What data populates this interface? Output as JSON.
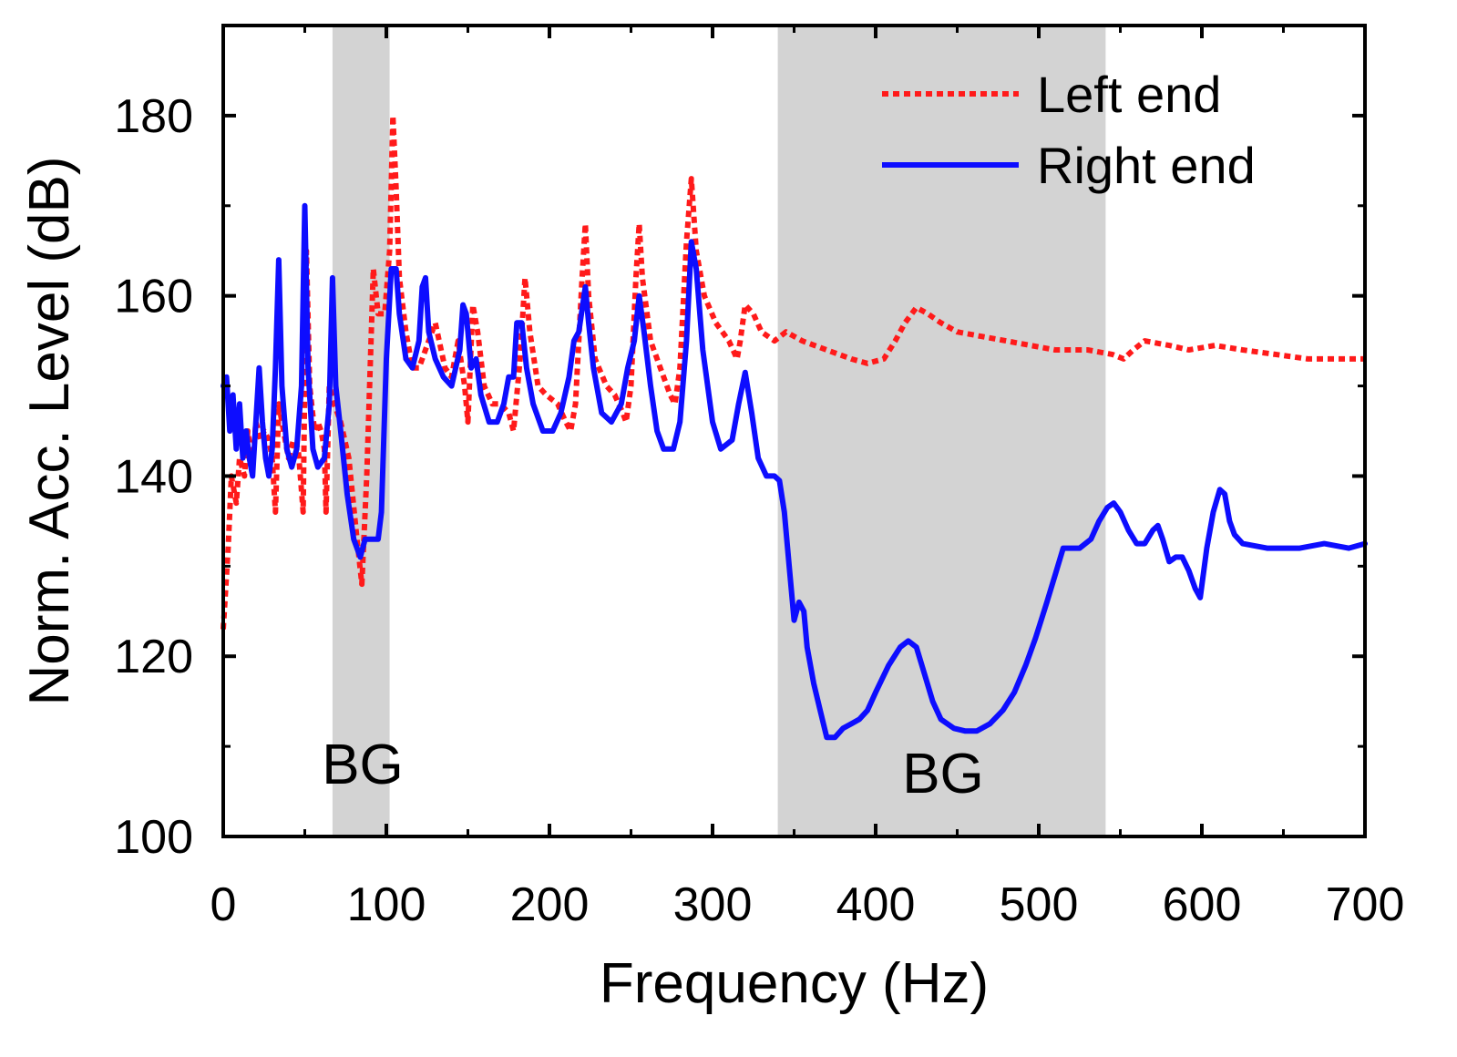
{
  "chart_data": {
    "type": "line",
    "title": "",
    "xlabel": "Frequency (Hz)",
    "ylabel": "Norm. Acc. Level (dB)",
    "xlim": [
      0,
      700
    ],
    "ylim": [
      100,
      190
    ],
    "x_ticks": [
      0,
      100,
      200,
      300,
      400,
      500,
      600,
      700
    ],
    "x_tick_labels": [
      "0",
      "100",
      "200",
      "300",
      "400",
      "500",
      "600",
      "700"
    ],
    "y_ticks": [
      100,
      120,
      140,
      160,
      180
    ],
    "y_tick_labels": [
      "100",
      "120",
      "140",
      "160",
      "180"
    ],
    "grid": false,
    "legend_position": "top-right",
    "bands": [
      {
        "label": "BG",
        "x_start": 67,
        "x_end": 102,
        "color": "#d3d3d3"
      },
      {
        "label": "BG",
        "x_start": 340,
        "x_end": 541,
        "color": "#d3d3d3"
      }
    ],
    "series": [
      {
        "name": "Left end",
        "color": "#ff1a1a",
        "style": "dotted",
        "points": [
          [
            0,
            123
          ],
          [
            3,
            132
          ],
          [
            5,
            140
          ],
          [
            8,
            137
          ],
          [
            10,
            142
          ],
          [
            13,
            140
          ],
          [
            15,
            145
          ],
          [
            18,
            141
          ],
          [
            20,
            146
          ],
          [
            23,
            144
          ],
          [
            25,
            145
          ],
          [
            28,
            144
          ],
          [
            30,
            142
          ],
          [
            32,
            136
          ],
          [
            34,
            148
          ],
          [
            36,
            146
          ],
          [
            40,
            142
          ],
          [
            43,
            144
          ],
          [
            46,
            143
          ],
          [
            49,
            136
          ],
          [
            51,
            165
          ],
          [
            53,
            150
          ],
          [
            56,
            145
          ],
          [
            58,
            146
          ],
          [
            60,
            145
          ],
          [
            62,
            143
          ],
          [
            63,
            136
          ],
          [
            65,
            150
          ],
          [
            68,
            148
          ],
          [
            72,
            146
          ],
          [
            77,
            142
          ],
          [
            82,
            133
          ],
          [
            85,
            128
          ],
          [
            88,
            140
          ],
          [
            92,
            163
          ],
          [
            95,
            158
          ],
          [
            99,
            158
          ],
          [
            102,
            165
          ],
          [
            104,
            180
          ],
          [
            106,
            172
          ],
          [
            108,
            162
          ],
          [
            112,
            156
          ],
          [
            116,
            152
          ],
          [
            120,
            152
          ],
          [
            126,
            155
          ],
          [
            130,
            157
          ],
          [
            136,
            152
          ],
          [
            140,
            151
          ],
          [
            144,
            155
          ],
          [
            148,
            150
          ],
          [
            150,
            146
          ],
          [
            153,
            159
          ],
          [
            156,
            156
          ],
          [
            160,
            150
          ],
          [
            165,
            148
          ],
          [
            170,
            148
          ],
          [
            175,
            147
          ],
          [
            178,
            145
          ],
          [
            182,
            153
          ],
          [
            185,
            162
          ],
          [
            188,
            156
          ],
          [
            193,
            150
          ],
          [
            198,
            149
          ],
          [
            205,
            148
          ],
          [
            210,
            146
          ],
          [
            213,
            145
          ],
          [
            216,
            148
          ],
          [
            220,
            162
          ],
          [
            222,
            168
          ],
          [
            224,
            160
          ],
          [
            228,
            153
          ],
          [
            235,
            150
          ],
          [
            240,
            149
          ],
          [
            245,
            147
          ],
          [
            247,
            146
          ],
          [
            250,
            150
          ],
          [
            253,
            162
          ],
          [
            255,
            168
          ],
          [
            257,
            162
          ],
          [
            262,
            155
          ],
          [
            268,
            152
          ],
          [
            274,
            149
          ],
          [
            277,
            148
          ],
          [
            280,
            152
          ],
          [
            284,
            166
          ],
          [
            287,
            173
          ],
          [
            290,
            165
          ],
          [
            295,
            160
          ],
          [
            302,
            157
          ],
          [
            310,
            155
          ],
          [
            315,
            153
          ],
          [
            317,
            155
          ],
          [
            320,
            159
          ],
          [
            325,
            158
          ],
          [
            330,
            156
          ],
          [
            338,
            155
          ],
          [
            345,
            156
          ],
          [
            355,
            155
          ],
          [
            370,
            154
          ],
          [
            385,
            153
          ],
          [
            395,
            152.5
          ],
          [
            405,
            153
          ],
          [
            412,
            155
          ],
          [
            418,
            157
          ],
          [
            425,
            158.7
          ],
          [
            432,
            158
          ],
          [
            440,
            157
          ],
          [
            450,
            156
          ],
          [
            465,
            155.5
          ],
          [
            480,
            155
          ],
          [
            495,
            154.5
          ],
          [
            510,
            154
          ],
          [
            520,
            154
          ],
          [
            530,
            154
          ],
          [
            545,
            153.5
          ],
          [
            552,
            153
          ],
          [
            558,
            154
          ],
          [
            565,
            155
          ],
          [
            580,
            154.5
          ],
          [
            592,
            154
          ],
          [
            608,
            154.5
          ],
          [
            625,
            154
          ],
          [
            645,
            153.5
          ],
          [
            665,
            153
          ],
          [
            685,
            153
          ],
          [
            700,
            153
          ]
        ]
      },
      {
        "name": "Right end",
        "color": "#0d0dff",
        "style": "solid",
        "points": [
          [
            0,
            150
          ],
          [
            2,
            151
          ],
          [
            4,
            145
          ],
          [
            6,
            149
          ],
          [
            8,
            143
          ],
          [
            10,
            148
          ],
          [
            12,
            142
          ],
          [
            14,
            145
          ],
          [
            16,
            142
          ],
          [
            18,
            140
          ],
          [
            20,
            146
          ],
          [
            22,
            152
          ],
          [
            24,
            146
          ],
          [
            26,
            142
          ],
          [
            28,
            140
          ],
          [
            30,
            143
          ],
          [
            32,
            152
          ],
          [
            34,
            164
          ],
          [
            36,
            150
          ],
          [
            39,
            143
          ],
          [
            42,
            141
          ],
          [
            45,
            143
          ],
          [
            48,
            150
          ],
          [
            50,
            170
          ],
          [
            52,
            152
          ],
          [
            55,
            143
          ],
          [
            58,
            141
          ],
          [
            62,
            142
          ],
          [
            65,
            148
          ],
          [
            67,
            162
          ],
          [
            69,
            150
          ],
          [
            72,
            145
          ],
          [
            76,
            138
          ],
          [
            80,
            133
          ],
          [
            84,
            131
          ],
          [
            87,
            133
          ],
          [
            90,
            133
          ],
          [
            95,
            133
          ],
          [
            97,
            136
          ],
          [
            100,
            153
          ],
          [
            103,
            163
          ],
          [
            106,
            163
          ],
          [
            108,
            158
          ],
          [
            112,
            153
          ],
          [
            116,
            152
          ],
          [
            120,
            155
          ],
          [
            122,
            161
          ],
          [
            124,
            162
          ],
          [
            126,
            156
          ],
          [
            130,
            153
          ],
          [
            135,
            151
          ],
          [
            140,
            150
          ],
          [
            145,
            154
          ],
          [
            147,
            159
          ],
          [
            149,
            158
          ],
          [
            152,
            152
          ],
          [
            155,
            153
          ],
          [
            158,
            149
          ],
          [
            163,
            146
          ],
          [
            168,
            146
          ],
          [
            172,
            148
          ],
          [
            175,
            151
          ],
          [
            178,
            151
          ],
          [
            180,
            157
          ],
          [
            183,
            157
          ],
          [
            186,
            152
          ],
          [
            190,
            148
          ],
          [
            196,
            145
          ],
          [
            202,
            145
          ],
          [
            207,
            147
          ],
          [
            212,
            151
          ],
          [
            215,
            155
          ],
          [
            218,
            156
          ],
          [
            222,
            161
          ],
          [
            224,
            157
          ],
          [
            227,
            152
          ],
          [
            232,
            147
          ],
          [
            238,
            146
          ],
          [
            244,
            148
          ],
          [
            248,
            152
          ],
          [
            252,
            155
          ],
          [
            255,
            160
          ],
          [
            258,
            156
          ],
          [
            262,
            150
          ],
          [
            266,
            145
          ],
          [
            270,
            143
          ],
          [
            276,
            143
          ],
          [
            280,
            146
          ],
          [
            284,
            155
          ],
          [
            287,
            166
          ],
          [
            290,
            163
          ],
          [
            294,
            154
          ],
          [
            300,
            146
          ],
          [
            305,
            143
          ],
          [
            312,
            144
          ],
          [
            316,
            148
          ],
          [
            320,
            151.5
          ],
          [
            324,
            147
          ],
          [
            328,
            142
          ],
          [
            333,
            140
          ],
          [
            338,
            140
          ],
          [
            341,
            139.5
          ],
          [
            344,
            136
          ],
          [
            347,
            130
          ],
          [
            350,
            124
          ],
          [
            353,
            126
          ],
          [
            356,
            125
          ],
          [
            358,
            121
          ],
          [
            362,
            117
          ],
          [
            366,
            114
          ],
          [
            370,
            111
          ],
          [
            375,
            111
          ],
          [
            380,
            112
          ],
          [
            385,
            112.5
          ],
          [
            390,
            113
          ],
          [
            395,
            114
          ],
          [
            400,
            116
          ],
          [
            408,
            119
          ],
          [
            415,
            121
          ],
          [
            420,
            121.7
          ],
          [
            425,
            121
          ],
          [
            430,
            118
          ],
          [
            435,
            115
          ],
          [
            440,
            113
          ],
          [
            448,
            112
          ],
          [
            455,
            111.7
          ],
          [
            462,
            111.7
          ],
          [
            470,
            112.5
          ],
          [
            478,
            114
          ],
          [
            485,
            116
          ],
          [
            492,
            119
          ],
          [
            498,
            122
          ],
          [
            505,
            126
          ],
          [
            510,
            129
          ],
          [
            515,
            132
          ],
          [
            525,
            132
          ],
          [
            532,
            133
          ],
          [
            537,
            135
          ],
          [
            542,
            136.5
          ],
          [
            546,
            137
          ],
          [
            550,
            136
          ],
          [
            555,
            134
          ],
          [
            560,
            132.5
          ],
          [
            565,
            132.5
          ],
          [
            570,
            134
          ],
          [
            573,
            134.5
          ],
          [
            576,
            133
          ],
          [
            580,
            130.5
          ],
          [
            584,
            131
          ],
          [
            588,
            131
          ],
          [
            592,
            129.5
          ],
          [
            596,
            127.5
          ],
          [
            599,
            126.5
          ],
          [
            603,
            132
          ],
          [
            607,
            136
          ],
          [
            611,
            138.5
          ],
          [
            614,
            138
          ],
          [
            617,
            135
          ],
          [
            620,
            133.5
          ],
          [
            625,
            132.5
          ],
          [
            640,
            132
          ],
          [
            660,
            132
          ],
          [
            675,
            132.5
          ],
          [
            690,
            132
          ],
          [
            700,
            132.5
          ]
        ]
      }
    ]
  }
}
